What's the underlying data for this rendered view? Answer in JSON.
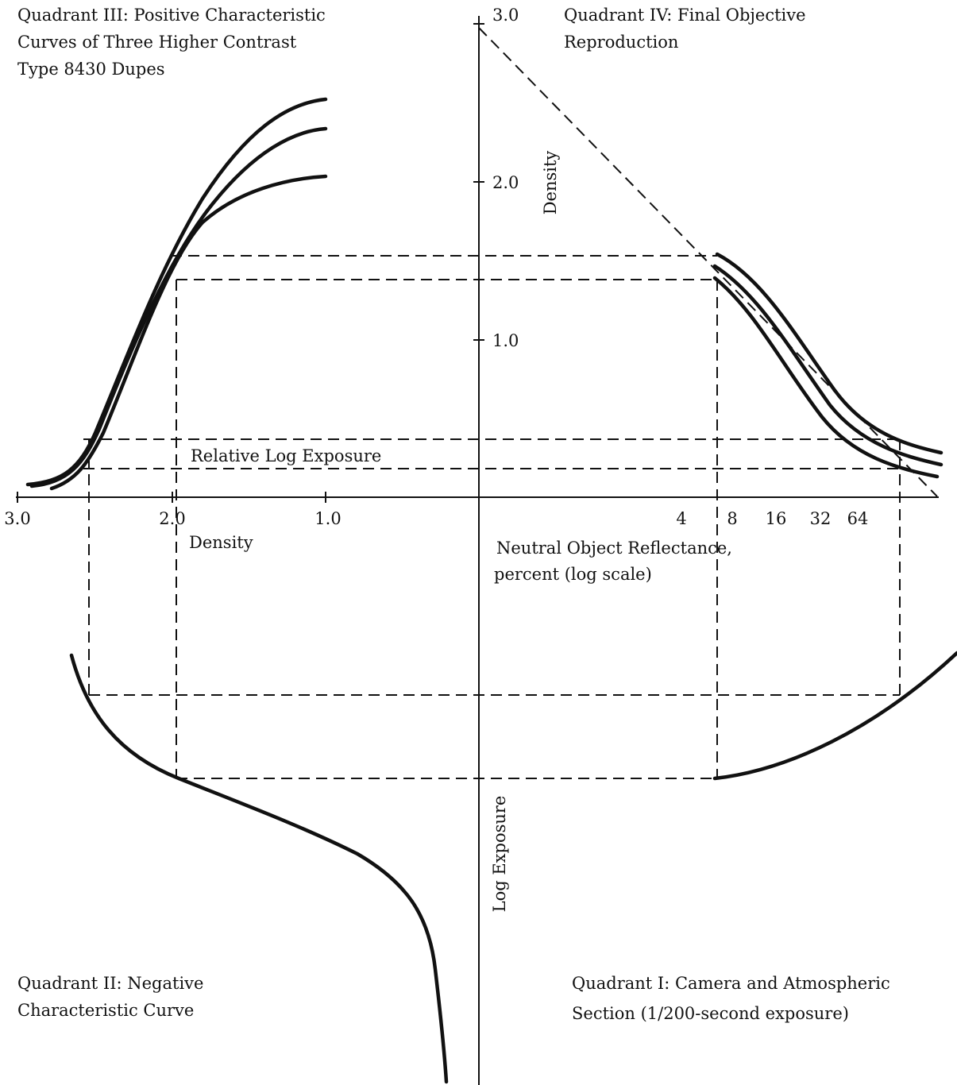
{
  "quadrant_III": [
    "Quadrant III:  Positive Characteristic",
    "Curves of Three Higher Contrast",
    "Type 8430 Dupes"
  ],
  "quadrant_IV": [
    "Quadrant IV:  Final Objective",
    "Reproduction"
  ],
  "quadrant_II": [
    "Quadrant II:  Negative",
    "Characteristic Curve"
  ],
  "quadrant_I": [
    "Quadrant I:  Camera and Atmospheric",
    "Section (1/200-second exposure)"
  ],
  "vertical_axis": {
    "ticks": [
      "3.0",
      "2.0",
      "1.0"
    ],
    "upper_label": "Density",
    "lower_label": "Log Exposure"
  },
  "horizontal_axis": {
    "left_ticks": [
      "3.0",
      "2.0",
      "1.0"
    ],
    "left_label": "Density",
    "upper_left_label": "Relative Log Exposure",
    "right_ticks": [
      "4",
      "8",
      "16",
      "32",
      "64"
    ],
    "right_label": [
      "Neutral Object Reflectance,",
      "percent (log scale)"
    ]
  }
}
